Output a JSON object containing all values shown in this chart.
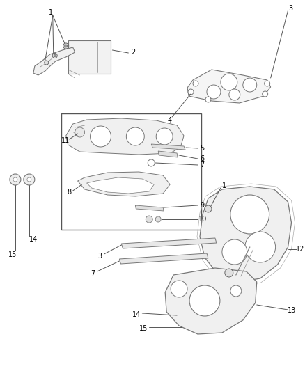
{
  "bg_color": "#ffffff",
  "line_color": "#888888",
  "dark_line": "#555555",
  "text_color": "#000000",
  "fig_width": 4.39,
  "fig_height": 5.33,
  "dpi": 100
}
